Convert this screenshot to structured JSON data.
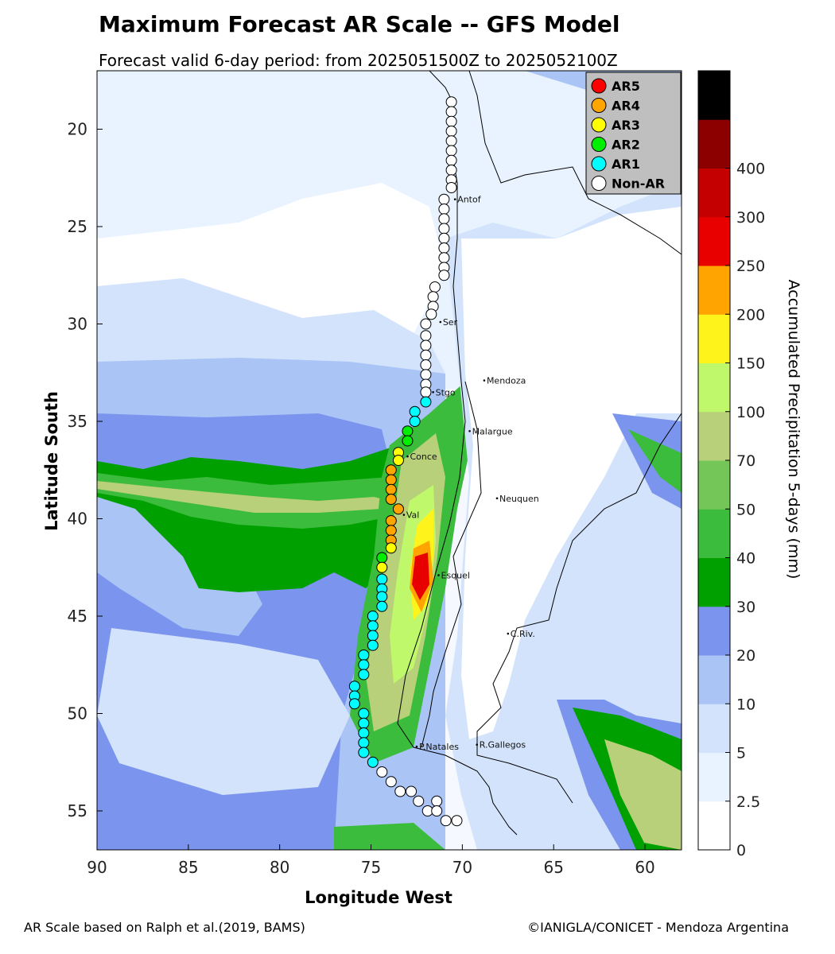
{
  "title": "Maximum Forecast AR Scale -- GFS Model",
  "subtitle": "Forecast valid 6-day period: from 2025051500Z to 2025052100Z",
  "footer_left": "AR Scale based on Ralph et al.(2019, BAMS)",
  "footer_right": "©IANIGLA/CONICET - Mendoza Argentina",
  "map": {
    "xlabel": "Longitude West",
    "ylabel": "Latitude South",
    "x_ticks": [
      "90",
      "85",
      "80",
      "75",
      "70",
      "65",
      "60"
    ],
    "y_ticks": [
      "20",
      "25",
      "30",
      "35",
      "40",
      "45",
      "50",
      "55"
    ],
    "x_range": [
      90,
      58
    ],
    "y_range": [
      17,
      57
    ]
  },
  "legend": [
    {
      "label": "AR5",
      "color": "#ff0000"
    },
    {
      "label": "AR4",
      "color": "#ffa500"
    },
    {
      "label": "AR3",
      "color": "#ffff00"
    },
    {
      "label": "AR2",
      "color": "#00ee00"
    },
    {
      "label": "AR1",
      "color": "#00ffff"
    },
    {
      "label": "Non-AR",
      "color": "#ffffff"
    }
  ],
  "colorbar": {
    "title": "Accumulated Precipitation 5-days (mm)",
    "labels": [
      "0",
      "2.5",
      "5",
      "10",
      "20",
      "30",
      "40",
      "50",
      "70",
      "100",
      "150",
      "200",
      "250",
      "300",
      "400"
    ],
    "colors": [
      "#ffffff",
      "#e8f3ff",
      "#d2e3fb",
      "#a9c4f5",
      "#7b95ee",
      "#00a000",
      "#3cbc3c",
      "#74c658",
      "#b8d07a",
      "#bff86a",
      "#fff31c",
      "#ffa400",
      "#e80000",
      "#c40000",
      "#8c0000",
      "#000000"
    ]
  },
  "cities": [
    {
      "name": "Antof",
      "lon": 70.4,
      "lat": 23.6
    },
    {
      "name": "Ser",
      "lon": 71.2,
      "lat": 29.9
    },
    {
      "name": "Mendoza",
      "lon": 68.8,
      "lat": 32.9
    },
    {
      "name": "Stgo",
      "lon": 71.6,
      "lat": 33.5
    },
    {
      "name": "Malargue",
      "lon": 69.6,
      "lat": 35.5
    },
    {
      "name": "Conce",
      "lon": 73.0,
      "lat": 36.8
    },
    {
      "name": "Neuquen",
      "lon": 68.1,
      "lat": 38.95
    },
    {
      "name": "Val",
      "lon": 73.2,
      "lat": 39.8
    },
    {
      "name": "Esquel",
      "lon": 71.3,
      "lat": 42.9
    },
    {
      "name": "C.Riv.",
      "lon": 67.5,
      "lat": 45.9
    },
    {
      "name": "P.Natales",
      "lon": 72.5,
      "lat": 51.7
    },
    {
      "name": "R.Gallegos",
      "lon": 69.2,
      "lat": 51.6
    }
  ],
  "ar_points": [
    {
      "lon": 70.6,
      "lat": 18.6,
      "cat": "Non-AR"
    },
    {
      "lon": 70.6,
      "lat": 19.1,
      "cat": "Non-AR"
    },
    {
      "lon": 70.6,
      "lat": 19.6,
      "cat": "Non-AR"
    },
    {
      "lon": 70.6,
      "lat": 20.1,
      "cat": "Non-AR"
    },
    {
      "lon": 70.6,
      "lat": 20.6,
      "cat": "Non-AR"
    },
    {
      "lon": 70.6,
      "lat": 21.1,
      "cat": "Non-AR"
    },
    {
      "lon": 70.6,
      "lat": 21.6,
      "cat": "Non-AR"
    },
    {
      "lon": 70.6,
      "lat": 22.1,
      "cat": "Non-AR"
    },
    {
      "lon": 70.6,
      "lat": 22.6,
      "cat": "Non-AR"
    },
    {
      "lon": 70.6,
      "lat": 23.0,
      "cat": "Non-AR"
    },
    {
      "lon": 71.0,
      "lat": 23.6,
      "cat": "Non-AR"
    },
    {
      "lon": 71.0,
      "lat": 24.1,
      "cat": "Non-AR"
    },
    {
      "lon": 71.0,
      "lat": 24.6,
      "cat": "Non-AR"
    },
    {
      "lon": 71.0,
      "lat": 25.1,
      "cat": "Non-AR"
    },
    {
      "lon": 71.0,
      "lat": 25.6,
      "cat": "Non-AR"
    },
    {
      "lon": 71.0,
      "lat": 26.1,
      "cat": "Non-AR"
    },
    {
      "lon": 71.0,
      "lat": 26.6,
      "cat": "Non-AR"
    },
    {
      "lon": 71.0,
      "lat": 27.1,
      "cat": "Non-AR"
    },
    {
      "lon": 71.0,
      "lat": 27.5,
      "cat": "Non-AR"
    },
    {
      "lon": 71.5,
      "lat": 28.1,
      "cat": "Non-AR"
    },
    {
      "lon": 71.6,
      "lat": 28.6,
      "cat": "Non-AR"
    },
    {
      "lon": 71.6,
      "lat": 29.1,
      "cat": "Non-AR"
    },
    {
      "lon": 71.7,
      "lat": 29.5,
      "cat": "Non-AR"
    },
    {
      "lon": 72.0,
      "lat": 30.0,
      "cat": "Non-AR"
    },
    {
      "lon": 72.0,
      "lat": 30.6,
      "cat": "Non-AR"
    },
    {
      "lon": 72.0,
      "lat": 31.1,
      "cat": "Non-AR"
    },
    {
      "lon": 72.0,
      "lat": 31.6,
      "cat": "Non-AR"
    },
    {
      "lon": 72.0,
      "lat": 32.1,
      "cat": "Non-AR"
    },
    {
      "lon": 72.0,
      "lat": 32.6,
      "cat": "Non-AR"
    },
    {
      "lon": 72.0,
      "lat": 33.1,
      "cat": "Non-AR"
    },
    {
      "lon": 72.0,
      "lat": 33.5,
      "cat": "Non-AR"
    },
    {
      "lon": 72.0,
      "lat": 34.0,
      "cat": "AR1"
    },
    {
      "lon": 72.6,
      "lat": 34.5,
      "cat": "AR1"
    },
    {
      "lon": 72.6,
      "lat": 35.0,
      "cat": "AR1"
    },
    {
      "lon": 73.0,
      "lat": 35.5,
      "cat": "AR2"
    },
    {
      "lon": 73.0,
      "lat": 36.0,
      "cat": "AR2"
    },
    {
      "lon": 73.5,
      "lat": 36.6,
      "cat": "AR3"
    },
    {
      "lon": 73.5,
      "lat": 37.0,
      "cat": "AR3"
    },
    {
      "lon": 73.9,
      "lat": 37.5,
      "cat": "AR4"
    },
    {
      "lon": 73.9,
      "lat": 38.0,
      "cat": "AR4"
    },
    {
      "lon": 73.9,
      "lat": 38.5,
      "cat": "AR4"
    },
    {
      "lon": 73.9,
      "lat": 39.0,
      "cat": "AR4"
    },
    {
      "lon": 73.5,
      "lat": 39.5,
      "cat": "AR4"
    },
    {
      "lon": 73.9,
      "lat": 40.1,
      "cat": "AR4"
    },
    {
      "lon": 73.9,
      "lat": 40.6,
      "cat": "AR4"
    },
    {
      "lon": 73.9,
      "lat": 41.1,
      "cat": "AR4"
    },
    {
      "lon": 73.9,
      "lat": 41.5,
      "cat": "AR3"
    },
    {
      "lon": 74.4,
      "lat": 42.0,
      "cat": "AR2"
    },
    {
      "lon": 74.4,
      "lat": 42.5,
      "cat": "AR3"
    },
    {
      "lon": 74.4,
      "lat": 43.1,
      "cat": "AR1"
    },
    {
      "lon": 74.4,
      "lat": 43.6,
      "cat": "AR1"
    },
    {
      "lon": 74.4,
      "lat": 44.0,
      "cat": "AR1"
    },
    {
      "lon": 74.4,
      "lat": 44.5,
      "cat": "AR1"
    },
    {
      "lon": 74.9,
      "lat": 45.0,
      "cat": "AR1"
    },
    {
      "lon": 74.9,
      "lat": 45.5,
      "cat": "AR1"
    },
    {
      "lon": 74.9,
      "lat": 46.0,
      "cat": "AR1"
    },
    {
      "lon": 74.9,
      "lat": 46.5,
      "cat": "AR1"
    },
    {
      "lon": 75.4,
      "lat": 47.0,
      "cat": "AR1"
    },
    {
      "lon": 75.4,
      "lat": 47.5,
      "cat": "AR1"
    },
    {
      "lon": 75.4,
      "lat": 48.0,
      "cat": "AR1"
    },
    {
      "lon": 75.9,
      "lat": 48.6,
      "cat": "AR1"
    },
    {
      "lon": 75.9,
      "lat": 49.1,
      "cat": "AR1"
    },
    {
      "lon": 75.9,
      "lat": 49.5,
      "cat": "AR1"
    },
    {
      "lon": 75.4,
      "lat": 50.0,
      "cat": "AR1"
    },
    {
      "lon": 75.4,
      "lat": 50.5,
      "cat": "AR1"
    },
    {
      "lon": 75.4,
      "lat": 51.0,
      "cat": "AR1"
    },
    {
      "lon": 75.4,
      "lat": 51.5,
      "cat": "AR1"
    },
    {
      "lon": 75.4,
      "lat": 52.0,
      "cat": "AR1"
    },
    {
      "lon": 74.9,
      "lat": 52.5,
      "cat": "AR1"
    },
    {
      "lon": 74.4,
      "lat": 53.0,
      "cat": "Non-AR"
    },
    {
      "lon": 73.9,
      "lat": 53.5,
      "cat": "Non-AR"
    },
    {
      "lon": 73.4,
      "lat": 54.0,
      "cat": "Non-AR"
    },
    {
      "lon": 72.8,
      "lat": 54.0,
      "cat": "Non-AR"
    },
    {
      "lon": 72.4,
      "lat": 54.5,
      "cat": "Non-AR"
    },
    {
      "lon": 71.4,
      "lat": 54.5,
      "cat": "Non-AR"
    },
    {
      "lon": 71.9,
      "lat": 55.0,
      "cat": "Non-AR"
    },
    {
      "lon": 71.4,
      "lat": 55.0,
      "cat": "Non-AR"
    },
    {
      "lon": 70.9,
      "lat": 55.5,
      "cat": "Non-AR"
    },
    {
      "lon": 70.3,
      "lat": 55.5,
      "cat": "Non-AR"
    }
  ]
}
